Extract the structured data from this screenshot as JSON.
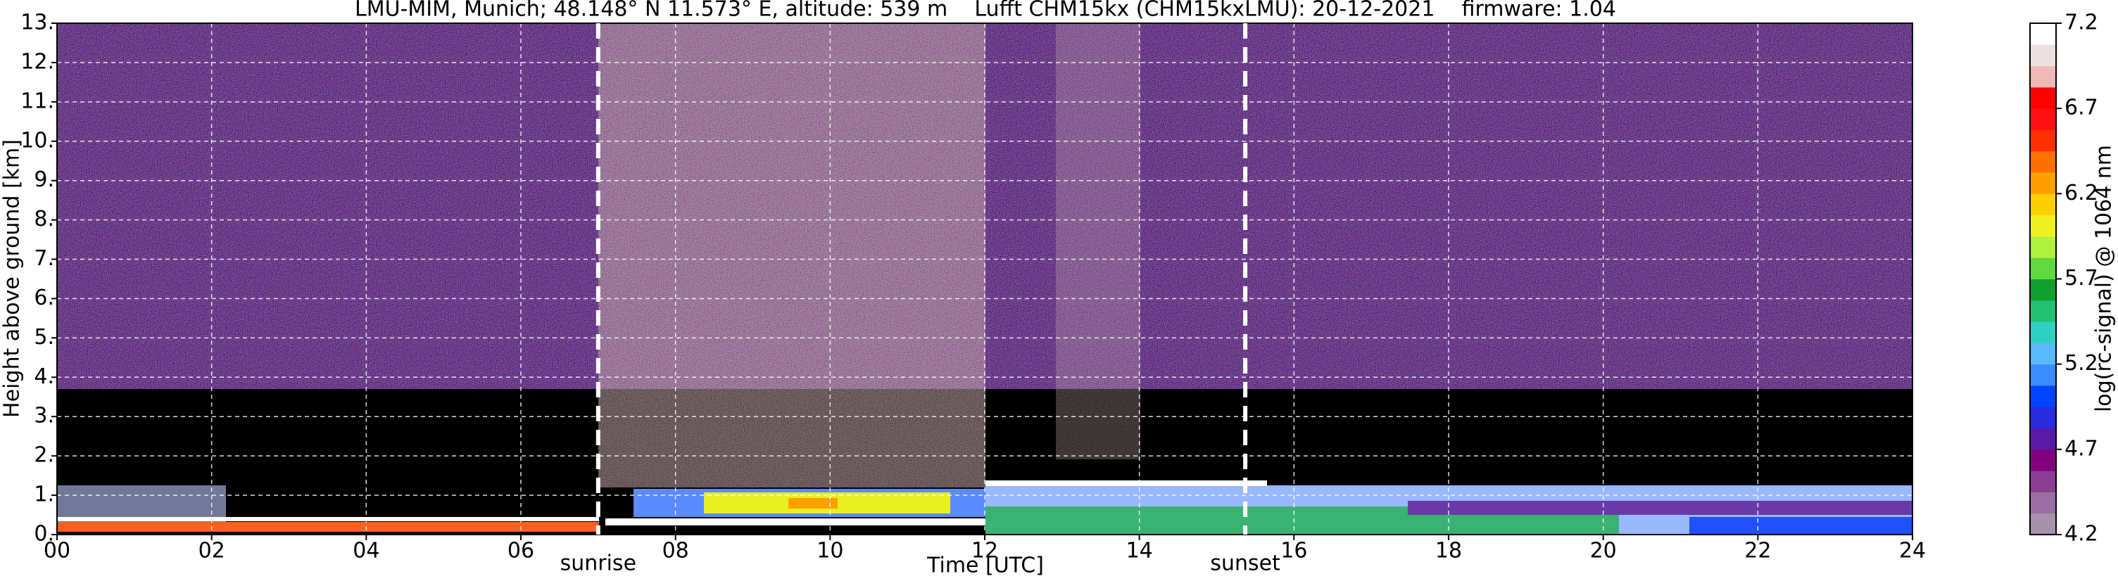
{
  "chart_data": {
    "type": "heatmap",
    "title": "LMU-MIM, Munich; 48.148° N 11.573° E, altitude: 539 m    Lufft CHM15kx (CHM15kxLMU): 20-12-2021    firmware: 1.04",
    "xlabel": "Time [UTC]",
    "ylabel": "Height above ground [km]",
    "colorbar_label": "log(rc-signal) @ 1064 nm",
    "xlim": [
      0,
      24
    ],
    "xticks": [
      {
        "value": 0,
        "label": "00"
      },
      {
        "value": 2,
        "label": "02"
      },
      {
        "value": 4,
        "label": "04"
      },
      {
        "value": 6,
        "label": "06"
      },
      {
        "value": 8,
        "label": "08"
      },
      {
        "value": 10,
        "label": "10"
      },
      {
        "value": 12,
        "label": "12"
      },
      {
        "value": 14,
        "label": "14"
      },
      {
        "value": 16,
        "label": "16"
      },
      {
        "value": 18,
        "label": "18"
      },
      {
        "value": 20,
        "label": "20"
      },
      {
        "value": 22,
        "label": "22"
      },
      {
        "value": 24,
        "label": "24"
      }
    ],
    "ylim": [
      0,
      13
    ],
    "yticks": [
      {
        "value": 0,
        "label": "0."
      },
      {
        "value": 1,
        "label": "1."
      },
      {
        "value": 2,
        "label": "2."
      },
      {
        "value": 3,
        "label": "3."
      },
      {
        "value": 4,
        "label": "4."
      },
      {
        "value": 5,
        "label": "5."
      },
      {
        "value": 6,
        "label": "6."
      },
      {
        "value": 7,
        "label": "7."
      },
      {
        "value": 8,
        "label": "8."
      },
      {
        "value": 9,
        "label": "9."
      },
      {
        "value": 10,
        "label": "10."
      },
      {
        "value": 11,
        "label": "11."
      },
      {
        "value": 12,
        "label": "12."
      },
      {
        "value": 13,
        "label": "13."
      }
    ],
    "clim": [
      4.2,
      7.2
    ],
    "cticks": [
      4.2,
      4.7,
      5.2,
      5.7,
      6.2,
      6.7,
      7.2
    ],
    "colormap": [
      "#a593ab",
      "#9a6fa3",
      "#8a3f93",
      "#800080",
      "#5a1aa8",
      "#2c2ce0",
      "#0044ff",
      "#3a8cff",
      "#5ab8ff",
      "#30d0c0",
      "#20c070",
      "#10a030",
      "#60d840",
      "#b0f040",
      "#f0f020",
      "#ffd000",
      "#ffa000",
      "#ff7000",
      "#ff3000",
      "#ff1010",
      "#ff0000",
      "#f0b8b8",
      "#ece0e0",
      "#ffffff"
    ],
    "grid": true,
    "events": [
      {
        "label": "sunrise",
        "x": 7.0
      },
      {
        "label": "sunset",
        "x": 15.37
      }
    ]
  }
}
